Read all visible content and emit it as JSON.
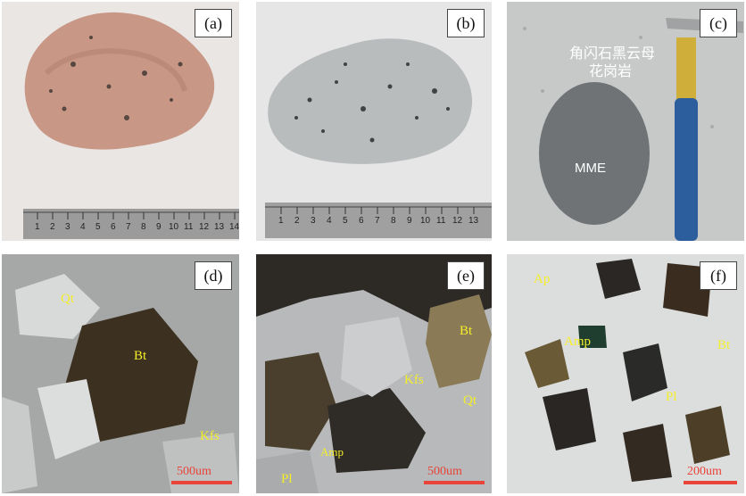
{
  "panels": [
    {
      "id": "a",
      "label": "(a)",
      "ruler_numbers": [
        "1",
        "2",
        "3",
        "4",
        "5",
        "6",
        "7",
        "8",
        "9",
        "10",
        "11",
        "12",
        "13",
        "14"
      ]
    },
    {
      "id": "b",
      "label": "(b)",
      "ruler_numbers": [
        "1",
        "2",
        "3",
        "4",
        "5",
        "6",
        "7",
        "8",
        "9",
        "10",
        "11",
        "12",
        "13"
      ]
    },
    {
      "id": "c",
      "label": "(c)",
      "caption_line1": "角闪石黑云母",
      "caption_line2": "花岗岩",
      "mme": "MME"
    },
    {
      "id": "d",
      "label": "(d)",
      "minerals": {
        "qt": "Qt",
        "bt": "Bt",
        "kfs": "Kfs"
      },
      "scale": "500um"
    },
    {
      "id": "e",
      "label": "(e)",
      "minerals": {
        "bt": "Bt",
        "kfs": "Kfs",
        "qt": "Qt",
        "amp": "Amp",
        "pl": "Pl"
      },
      "scale": "500um"
    },
    {
      "id": "f",
      "label": "(f)",
      "minerals": {
        "ap": "Ap",
        "amp": "Amp",
        "bt": "Bt",
        "pl": "Pl"
      },
      "scale": "200um"
    }
  ],
  "colors": {
    "label_yellow": "#f4ee2a",
    "scale_red": "#e8443a"
  }
}
